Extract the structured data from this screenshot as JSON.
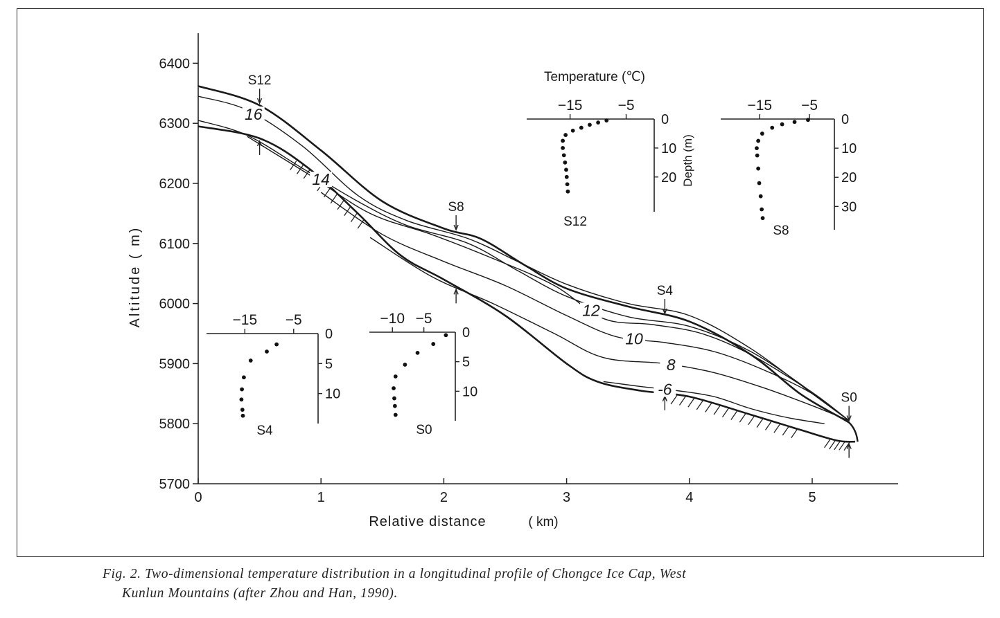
{
  "caption": {
    "line1": "Fig. 2. Two-dimensional temperature distribution in a longitudinal profile of Chongce Ice Cap, West",
    "line2": "Kunlun Mountains (after Zhou and Han, 1990)."
  },
  "chart_data": [
    {
      "type": "line",
      "xlabel": "Relative distance",
      "xlabel_unit": "( km)",
      "ylabel": "Altitude ( m)",
      "xlim": [
        0,
        5.6
      ],
      "ylim": [
        5700,
        6450
      ],
      "x_ticks": [
        "0",
        "1",
        "2",
        "3",
        "4",
        "5"
      ],
      "y_ticks": [
        "5700",
        "5800",
        "5900",
        "6000",
        "6100",
        "6200",
        "6300",
        "6400"
      ],
      "series": [
        {
          "role": "ice-surface",
          "x": [
            0,
            0.5,
            1.0,
            1.5,
            2.0,
            2.3,
            2.65,
            3.0,
            3.5,
            4.0,
            4.5,
            4.9,
            5.25,
            5.3
          ],
          "y": [
            6362,
            6330,
            6255,
            6170,
            6125,
            6108,
            6065,
            6025,
            5995,
            5970,
            5915,
            5850,
            5808,
            5802
          ]
        },
        {
          "role": "bedrock",
          "x": [
            0,
            0.5,
            0.9,
            1.3,
            1.65,
            2.0,
            2.5,
            3.0,
            3.25,
            3.6,
            4.0,
            4.5,
            4.9,
            5.2,
            5.35
          ],
          "y": [
            6295,
            6275,
            6225,
            6150,
            6080,
            6040,
            5980,
            5900,
            5870,
            5855,
            5845,
            5815,
            5790,
            5772,
            5770
          ]
        },
        {
          "name": "16",
          "x": [
            0,
            0.4,
            0.85,
            1.3,
            1.7,
            2.2,
            2.6,
            3.0,
            3.5,
            4.0,
            4.5,
            5.0,
            5.3
          ],
          "y": [
            6345,
            6322,
            6262,
            6180,
            6138,
            6108,
            6070,
            6032,
            6000,
            5980,
            5925,
            5850,
            5805
          ]
        },
        {
          "name": "14",
          "x": [
            0,
            0.4,
            0.85,
            1.3,
            1.7,
            2.2,
            2.6,
            3.0,
            3.5,
            4.0,
            4.5,
            5.0,
            5.3
          ],
          "y": [
            6305,
            6280,
            6225,
            6170,
            6130,
            6100,
            6055,
            6012,
            5978,
            5962,
            5920,
            5852,
            5805
          ]
        },
        {
          "name": "12",
          "x": [
            0.4,
            0.9,
            1.4,
            1.9,
            2.4,
            2.9,
            3.3,
            3.7,
            4.1,
            4.5,
            5.0,
            5.3
          ],
          "y": [
            6278,
            6215,
            6150,
            6115,
            6075,
            6030,
            5975,
            5965,
            5950,
            5915,
            5852,
            5805
          ]
        },
        {
          "name": "10",
          "x": [
            1.0,
            1.5,
            2.0,
            2.5,
            3.0,
            3.4,
            3.8,
            4.2,
            4.6,
            5.0,
            5.3
          ],
          "y": [
            6185,
            6115,
            6070,
            6030,
            5980,
            5945,
            5935,
            5920,
            5890,
            5850,
            5805
          ]
        },
        {
          "name": "8",
          "x": [
            1.4,
            1.9,
            2.4,
            2.9,
            3.3,
            3.8,
            4.2,
            4.6,
            5.0,
            5.3
          ],
          "y": [
            6110,
            6045,
            6000,
            5950,
            5910,
            5900,
            5885,
            5860,
            5830,
            5805
          ]
        },
        {
          "name": "-6",
          "x": [
            3.3,
            3.6,
            3.9,
            4.2,
            4.5,
            4.8,
            5.1
          ],
          "y": [
            5870,
            5862,
            5855,
            5845,
            5825,
            5810,
            5800
          ]
        }
      ],
      "stations": [
        {
          "label": "S12",
          "x": 0.5
        },
        {
          "label": "S8",
          "x": 2.1
        },
        {
          "label": "S4",
          "x": 3.8
        },
        {
          "label": "S0",
          "x": 5.3
        }
      ]
    },
    {
      "type": "scatter",
      "station": "S12",
      "top_label": "Temperature (℃)",
      "ylabel": "Depth (m)",
      "x_ticks": [
        "−15",
        "−5"
      ],
      "y_ticks": [
        "0",
        "10",
        "20"
      ],
      "xlim": [
        -22,
        0
      ],
      "ylim": [
        0,
        32
      ],
      "points": [
        [
          -8.5,
          0.5
        ],
        [
          -10,
          1.2
        ],
        [
          -11.5,
          2
        ],
        [
          -13,
          3
        ],
        [
          -14.5,
          4
        ],
        [
          -15.8,
          5.5
        ],
        [
          -16.3,
          7.5
        ],
        [
          -16.3,
          10
        ],
        [
          -16.1,
          12.5
        ],
        [
          -15.9,
          15
        ],
        [
          -15.7,
          17.5
        ],
        [
          -15.6,
          20
        ],
        [
          -15.5,
          22.5
        ],
        [
          -15.4,
          25
        ]
      ]
    },
    {
      "type": "scatter",
      "station": "S8",
      "x_ticks": [
        "−15",
        "−5"
      ],
      "y_ticks": [
        "0",
        "10",
        "20",
        "30"
      ],
      "xlim": [
        -22,
        0
      ],
      "ylim": [
        0,
        38
      ],
      "points": [
        [
          -5.3,
          0.3
        ],
        [
          -8,
          1
        ],
        [
          -10.5,
          1.8
        ],
        [
          -12.5,
          3
        ],
        [
          -14.5,
          5
        ],
        [
          -15.3,
          7.5
        ],
        [
          -15.6,
          10
        ],
        [
          -15.5,
          12.5
        ],
        [
          -15.3,
          17
        ],
        [
          -15.1,
          22
        ],
        [
          -14.8,
          26.5
        ],
        [
          -14.6,
          31
        ],
        [
          -14.4,
          34
        ]
      ]
    },
    {
      "type": "scatter",
      "station": "S4",
      "x_ticks": [
        "−15",
        "−5"
      ],
      "y_ticks": [
        "0",
        "5",
        "10"
      ],
      "xlim": [
        -22,
        0
      ],
      "ylim": [
        0,
        15
      ],
      "points": [
        [
          -8.5,
          1.8
        ],
        [
          -10.5,
          3
        ],
        [
          -13.8,
          4.5
        ],
        [
          -15.2,
          7.3
        ],
        [
          -15.6,
          9.3
        ],
        [
          -15.7,
          11
        ],
        [
          -15.5,
          12.7
        ],
        [
          -15.4,
          13.7
        ]
      ]
    },
    {
      "type": "scatter",
      "station": "S0",
      "x_ticks": [
        "−10",
        "−5"
      ],
      "y_ticks": [
        "0",
        "5",
        "10"
      ],
      "xlim": [
        -13,
        0
      ],
      "ylim": [
        0,
        15
      ],
      "points": [
        [
          -1.5,
          0.5
        ],
        [
          -3.5,
          2
        ],
        [
          -6,
          3.5
        ],
        [
          -8,
          5.5
        ],
        [
          -9.5,
          7.5
        ],
        [
          -9.8,
          9.5
        ],
        [
          -9.7,
          11.2
        ],
        [
          -9.6,
          12.5
        ],
        [
          -9.5,
          14
        ]
      ]
    }
  ]
}
